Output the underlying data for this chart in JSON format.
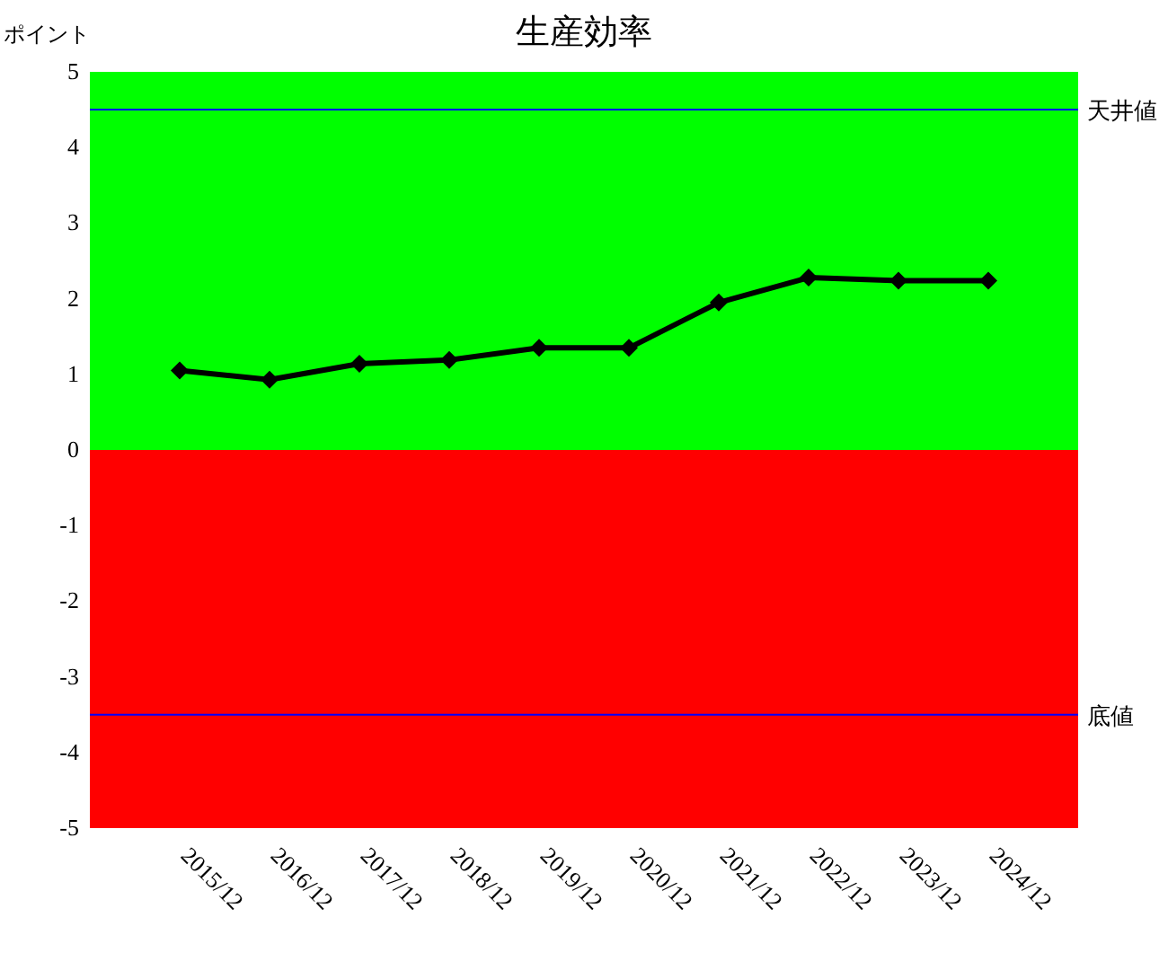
{
  "chart_data": {
    "type": "line",
    "title": "生産効率",
    "ylabel": "ポイント",
    "categories": [
      "2015/12",
      "2016/12",
      "2017/12",
      "2018/12",
      "2019/12",
      "2020/12",
      "2021/12",
      "2022/12",
      "2023/12",
      "2024/12"
    ],
    "series": [
      {
        "color": "#000000",
        "values": [
          1.05,
          0.93,
          1.14,
          1.19,
          1.35,
          1.35,
          1.95,
          2.28,
          2.24,
          2.24
        ]
      }
    ],
    "marker": "diamond",
    "line_style": "solid",
    "grid": false,
    "ylim": [
      -5,
      5
    ],
    "yticks": [
      -5,
      -4,
      -3,
      -2,
      -1,
      0,
      1,
      2,
      3,
      4,
      5
    ],
    "bands": [
      {
        "axis": "y",
        "from": 0,
        "to": 5,
        "color": "#00ff00"
      },
      {
        "axis": "y",
        "from": -5,
        "to": 0,
        "color": "#ff0000"
      }
    ],
    "ref_lines": [
      {
        "axis": "y",
        "value": 4.5,
        "label": "天井値",
        "color": "#0000ff"
      },
      {
        "axis": "y",
        "value": -3.5,
        "label": "底値",
        "color": "#0000ff"
      }
    ]
  }
}
